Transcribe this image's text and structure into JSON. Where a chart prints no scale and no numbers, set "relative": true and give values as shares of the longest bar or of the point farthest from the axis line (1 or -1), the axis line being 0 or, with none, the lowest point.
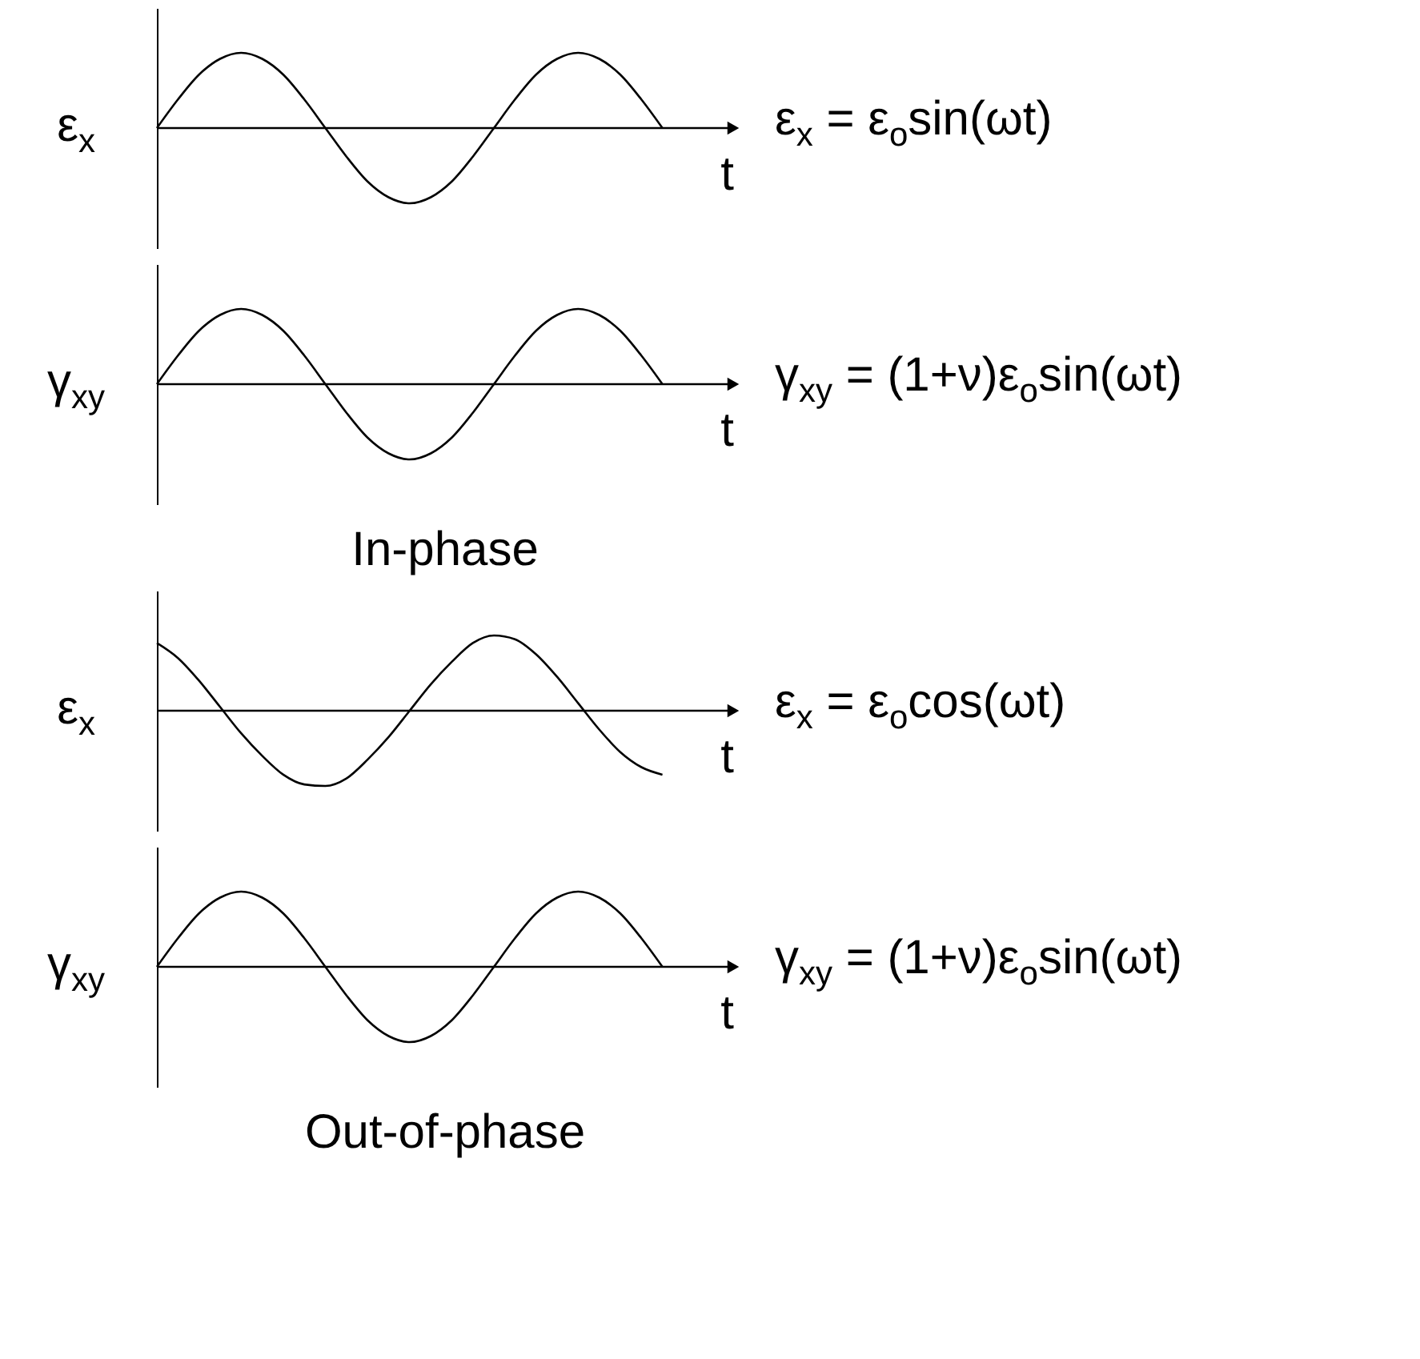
{
  "chart_data": [
    {
      "type": "line",
      "relative": true,
      "ylabel": "ε$_{x}$",
      "xlabel": "t",
      "annotations": [
        "ε$_{x}$ = ε$_{o}$sin(ωt)"
      ],
      "marker": "none",
      "line_style": "solid",
      "grid": false,
      "categories": [
        null,
        null,
        null,
        null,
        null,
        null,
        null,
        null,
        null,
        null,
        null,
        null,
        null,
        null,
        null,
        null,
        null,
        null,
        null,
        null,
        null,
        null,
        null,
        null,
        null
      ],
      "series": [
        {
          "color": "#000000",
          "values": [
            0,
            0.38,
            0.71,
            0.92,
            1,
            0.92,
            0.71,
            0.38,
            0,
            -0.38,
            -0.71,
            -0.92,
            -1,
            -0.92,
            -0.71,
            -0.38,
            0,
            0.38,
            0.71,
            0.92,
            1,
            0.92,
            0.71,
            0.38,
            0
          ]
        }
      ]
    },
    {
      "type": "line",
      "relative": true,
      "ylabel": "γ$_{xy}$",
      "xlabel": "t",
      "title": "In-phase",
      "annotations": [
        "γ$_{xy}$ = (1+ν)ε$_{o}$sin(ωt)"
      ],
      "marker": "none",
      "line_style": "solid",
      "grid": false,
      "categories": [
        null,
        null,
        null,
        null,
        null,
        null,
        null,
        null,
        null,
        null,
        null,
        null,
        null,
        null,
        null,
        null,
        null,
        null,
        null,
        null,
        null,
        null,
        null,
        null,
        null
      ],
      "series": [
        {
          "color": "#000000",
          "values": [
            0,
            0.38,
            0.71,
            0.92,
            1,
            0.92,
            0.71,
            0.38,
            0,
            -0.38,
            -0.71,
            -0.92,
            -1,
            -0.92,
            -0.71,
            -0.38,
            0,
            0.38,
            0.71,
            0.92,
            1,
            0.92,
            0.71,
            0.38,
            0
          ]
        }
      ]
    },
    {
      "type": "line",
      "relative": true,
      "ylabel": "ε$_{x}$",
      "xlabel": "t",
      "annotations": [
        "ε$_{x}$ = ε$_{o}$cos(ωt)"
      ],
      "marker": "none",
      "line_style": "solid",
      "grid": false,
      "categories": [
        null,
        null,
        null,
        null,
        null,
        null,
        null,
        null,
        null,
        null,
        null,
        null,
        null,
        null,
        null,
        null,
        null,
        null,
        null,
        null,
        null,
        null,
        null,
        null,
        null
      ],
      "series": [
        {
          "color": "#000000",
          "values": [
            0.9,
            0.7,
            0.4,
            0.05,
            -0.3,
            -0.6,
            -0.85,
            -0.98,
            -1,
            -0.9,
            -0.65,
            -0.35,
            0,
            0.35,
            0.65,
            0.9,
            1,
            0.95,
            0.75,
            0.45,
            0.1,
            -0.25,
            -0.55,
            -0.75,
            -0.85
          ]
        }
      ]
    },
    {
      "type": "line",
      "relative": true,
      "ylabel": "γ$_{xy}$",
      "xlabel": "t",
      "title": "Out-of-phase",
      "annotations": [
        "γ$_{xy}$ = (1+ν)ε$_{o}$sin(ωt)"
      ],
      "marker": "none",
      "line_style": "solid",
      "grid": false,
      "categories": [
        null,
        null,
        null,
        null,
        null,
        null,
        null,
        null,
        null,
        null,
        null,
        null,
        null,
        null,
        null,
        null,
        null,
        null,
        null,
        null,
        null,
        null,
        null,
        null,
        null
      ],
      "series": [
        {
          "color": "#000000",
          "values": [
            0,
            0.38,
            0.71,
            0.92,
            1,
            0.92,
            0.71,
            0.38,
            0,
            -0.38,
            -0.71,
            -0.92,
            -1,
            -0.92,
            -0.71,
            -0.38,
            0,
            0.38,
            0.71,
            0.92,
            1,
            0.92,
            0.71,
            0.38,
            0
          ]
        }
      ]
    }
  ]
}
